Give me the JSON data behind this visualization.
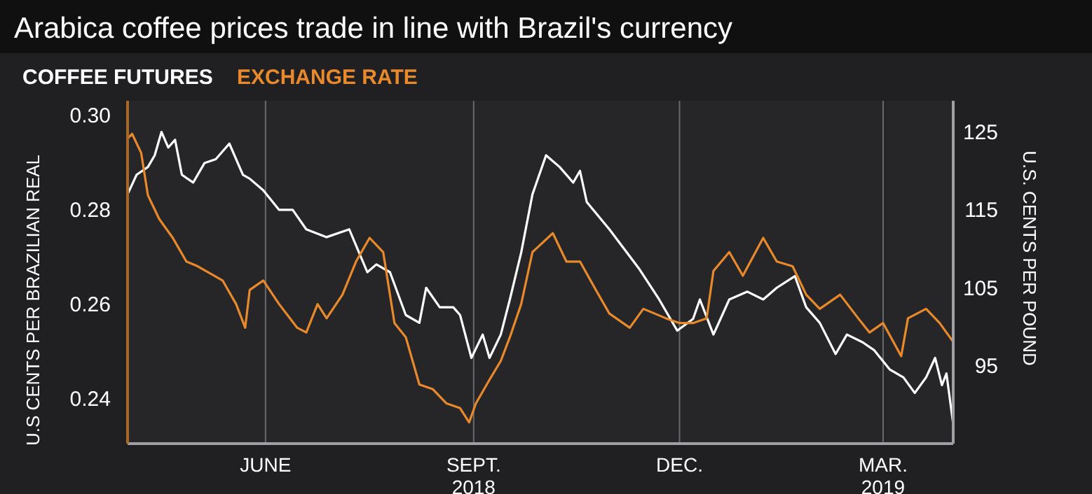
{
  "chart_data": {
    "type": "line",
    "title": "Arabica coffee prices trade in line with Brazil's currency",
    "ylabel": "U.S CENTS PER BRAZILIAN REAL",
    "y2label": "U.S. CENTS PER POUND",
    "xlim": [
      "2018-04-01",
      "2019-04-01"
    ],
    "xticks": [
      {
        "value": "2018-06-01",
        "label": "JUNE"
      },
      {
        "value": "2018-09-01",
        "label": "SEPT.\n2018"
      },
      {
        "value": "2018-12-01",
        "label": "DEC."
      },
      {
        "value": "2019-03-01",
        "label": "MAR.\n2019"
      }
    ],
    "ylim": [
      0.2305,
      0.303
    ],
    "yticks": [
      {
        "value": 0.24,
        "label": "0.24"
      },
      {
        "value": 0.26,
        "label": "0.26"
      },
      {
        "value": 0.28,
        "label": "0.28"
      },
      {
        "value": 0.3,
        "label": "0.30"
      }
    ],
    "y2lim": [
      85,
      129
    ],
    "y2ticks": [
      95,
      105,
      115,
      125
    ],
    "grid": "x",
    "legend": "top left",
    "series": [
      {
        "name": "COFFEE FUTURES",
        "color": "#ffffff",
        "axis": "y2",
        "x": [
          "2018-04-01",
          "2018-04-05",
          "2018-04-10",
          "2018-04-13",
          "2018-04-16",
          "2018-04-19",
          "2018-04-22",
          "2018-04-25",
          "2018-04-30",
          "2018-05-05",
          "2018-05-10",
          "2018-05-16",
          "2018-05-22",
          "2018-05-25",
          "2018-05-31",
          "2018-06-07",
          "2018-06-13",
          "2018-06-19",
          "2018-06-28",
          "2018-07-08",
          "2018-07-16",
          "2018-07-20",
          "2018-07-26",
          "2018-08-02",
          "2018-08-08",
          "2018-08-11",
          "2018-08-17",
          "2018-08-23",
          "2018-08-26",
          "2018-08-31",
          "2018-09-05",
          "2018-09-08",
          "2018-09-13",
          "2018-09-17",
          "2018-09-22",
          "2018-09-27",
          "2018-10-03",
          "2018-10-09",
          "2018-10-15",
          "2018-10-18",
          "2018-10-21",
          "2018-10-31",
          "2018-11-13",
          "2018-11-22",
          "2018-11-30",
          "2018-12-07",
          "2018-12-10",
          "2018-12-16",
          "2018-12-23",
          "2018-12-31",
          "2019-01-07",
          "2019-01-13",
          "2019-01-21",
          "2019-01-26",
          "2019-02-01",
          "2019-02-08",
          "2019-02-13",
          "2019-02-20",
          "2019-02-25",
          "2019-03-04",
          "2019-03-10",
          "2019-03-15",
          "2019-03-20",
          "2019-03-24",
          "2019-03-27",
          "2019-03-29",
          "2019-04-01"
        ],
        "values": [
          117,
          119.5,
          120.5,
          122,
          125,
          123,
          124,
          119.5,
          118.5,
          121,
          121.5,
          123.5,
          119.5,
          119,
          117.5,
          115,
          115,
          112.5,
          111.5,
          112.5,
          107,
          108,
          107,
          101.5,
          100.5,
          105,
          102.5,
          102.5,
          101.5,
          96,
          99,
          96,
          99,
          103.5,
          109.5,
          117,
          122,
          120.5,
          118.5,
          120,
          116,
          112.5,
          107.5,
          103.5,
          99.5,
          101,
          103.5,
          99,
          103.5,
          104.5,
          103.5,
          105,
          106.5,
          102.5,
          100.5,
          96.5,
          99,
          98,
          97,
          94.5,
          93.5,
          91.5,
          93.5,
          96,
          92.5,
          94,
          87.5
        ]
      },
      {
        "name": "EXCHANGE RATE",
        "color": "#e8892b",
        "axis": "y",
        "x": [
          "2018-04-01",
          "2018-04-03",
          "2018-04-07",
          "2018-04-10",
          "2018-04-15",
          "2018-04-21",
          "2018-04-27",
          "2018-05-02",
          "2018-05-13",
          "2018-05-19",
          "2018-05-23",
          "2018-05-25",
          "2018-05-31",
          "2018-06-07",
          "2018-06-15",
          "2018-06-19",
          "2018-06-24",
          "2018-06-28",
          "2018-07-05",
          "2018-07-11",
          "2018-07-17",
          "2018-07-23",
          "2018-07-28",
          "2018-08-02",
          "2018-08-08",
          "2018-08-14",
          "2018-08-20",
          "2018-08-26",
          "2018-08-30",
          "2018-09-02",
          "2018-09-08",
          "2018-09-13",
          "2018-09-17",
          "2018-09-22",
          "2018-09-27",
          "2018-10-06",
          "2018-10-12",
          "2018-10-18",
          "2018-10-25",
          "2018-10-31",
          "2018-11-09",
          "2018-11-15",
          "2018-11-25",
          "2018-12-01",
          "2018-12-07",
          "2018-12-13",
          "2018-12-16",
          "2018-12-23",
          "2018-12-29",
          "2019-01-07",
          "2019-01-13",
          "2019-01-20",
          "2019-01-26",
          "2019-02-01",
          "2019-02-10",
          "2019-02-18",
          "2019-02-23",
          "2019-03-01",
          "2019-03-09",
          "2019-03-12",
          "2019-03-20",
          "2019-03-26",
          "2019-04-01"
        ],
        "values": [
          0.295,
          0.296,
          0.292,
          0.283,
          0.278,
          0.274,
          0.269,
          0.268,
          0.265,
          0.26,
          0.255,
          0.263,
          0.265,
          0.26,
          0.255,
          0.254,
          0.26,
          0.257,
          0.262,
          0.269,
          0.274,
          0.271,
          0.256,
          0.253,
          0.243,
          0.242,
          0.239,
          0.238,
          0.235,
          0.239,
          0.244,
          0.248,
          0.253,
          0.26,
          0.271,
          0.275,
          0.269,
          0.269,
          0.263,
          0.258,
          0.255,
          0.259,
          0.257,
          0.256,
          0.256,
          0.257,
          0.267,
          0.271,
          0.266,
          0.274,
          0.269,
          0.268,
          0.262,
          0.259,
          0.262,
          0.257,
          0.254,
          0.256,
          0.249,
          0.257,
          0.259,
          0.256,
          0.252
        ]
      }
    ]
  }
}
